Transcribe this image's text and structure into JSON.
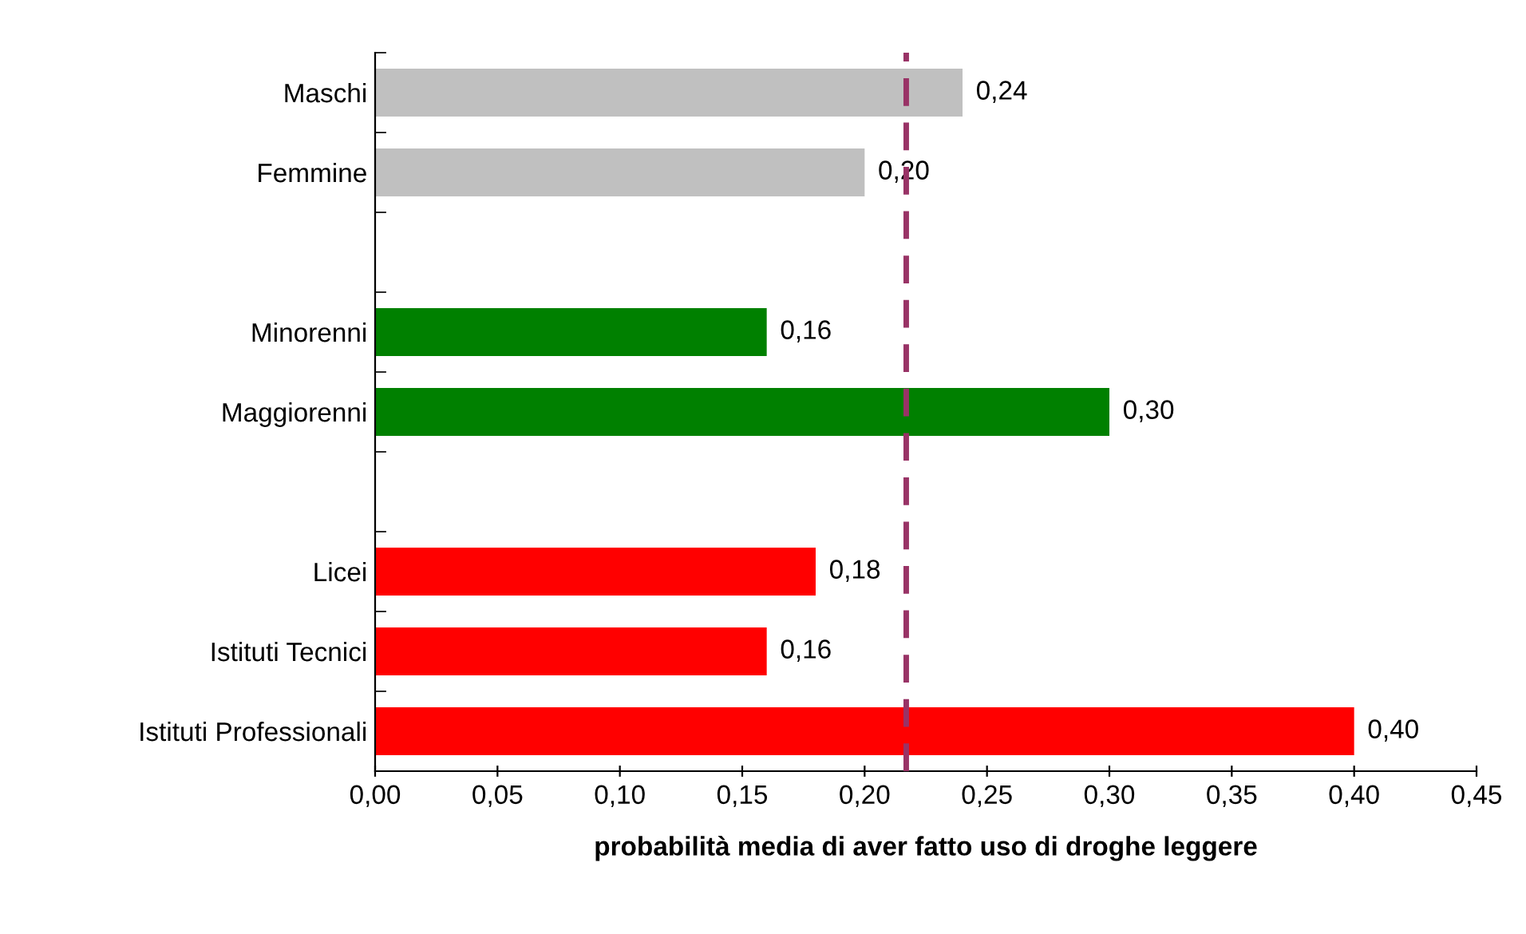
{
  "chart_data": {
    "type": "bar",
    "orientation": "horizontal",
    "xlabel": "probabilità media di aver fatto uso di droghe leggere",
    "categories": [
      "Maschi",
      "Femmine",
      null,
      "Minorenni",
      "Maggiorenni",
      null,
      "Licei",
      "Istituti Tecnici",
      "Istituti Professionali"
    ],
    "values": [
      0.24,
      0.2,
      null,
      0.16,
      0.3,
      null,
      0.18,
      0.16,
      0.4
    ],
    "colors": [
      "#c0c0c0",
      "#c0c0c0",
      null,
      "#008000",
      "#008000",
      null,
      "#ff0000",
      "#ff0000",
      "#ff0000"
    ],
    "value_labels": [
      "0,24",
      "0,20",
      null,
      "0,16",
      "0,30",
      null,
      "0,18",
      "0,16",
      "0,40"
    ],
    "xlim": [
      0,
      0.45
    ],
    "xticks": [
      {
        "value": 0,
        "label": "0,00"
      },
      {
        "value": 0.05,
        "label": "0,05"
      },
      {
        "value": 0.1,
        "label": "0,10"
      },
      {
        "value": 0.15,
        "label": "0,15"
      },
      {
        "value": 0.2,
        "label": "0,20"
      },
      {
        "value": 0.25,
        "label": "0,25"
      },
      {
        "value": 0.3,
        "label": "0,30"
      },
      {
        "value": 0.35,
        "label": "0,35"
      },
      {
        "value": 0.4,
        "label": "0,40"
      },
      {
        "value": 0.45,
        "label": "0,45"
      }
    ],
    "ref_lines": [
      {
        "axis": "x",
        "value": 0.217,
        "color": "#993366",
        "line_style": "dashed"
      }
    ],
    "grid": false,
    "legend": false
  }
}
